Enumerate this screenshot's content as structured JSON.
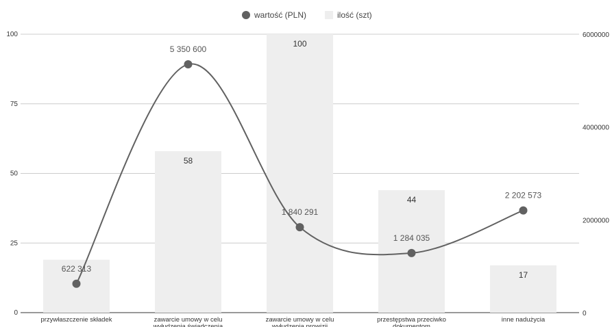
{
  "chart_data": {
    "type": "bar+line",
    "legend": {
      "position": "top",
      "entries": [
        {
          "name": "wartość (PLN)",
          "marker": "circle",
          "color": "#616161"
        },
        {
          "name": "ilość (szt)",
          "marker": "square",
          "color": "#eeeeee"
        }
      ]
    },
    "categories": [
      [
        "przywłaszczenie składek"
      ],
      [
        "zawarcie umowy w celu",
        "wyłudzenia świadczenia"
      ],
      [
        "zawarcie umowy w celu",
        "wyłudzenia prowizji"
      ],
      [
        "przestępstwa przeciwko",
        "dokumentom"
      ],
      [
        "inne nadużycia"
      ]
    ],
    "series": [
      {
        "name": "ilość (szt)",
        "type": "bar",
        "axis": "left",
        "values": [
          19,
          58,
          100,
          44,
          17
        ],
        "labels": [
          "",
          "58",
          "100",
          "44",
          "17"
        ],
        "color": "#eeeeee"
      },
      {
        "name": "wartość (PLN)",
        "type": "line",
        "smooth": true,
        "axis": "right",
        "values": [
          622313,
          5350600,
          1840291,
          1284035,
          2202573
        ],
        "labels": [
          "622 313",
          "5 350 600",
          "1 840 291",
          "1 284 035",
          "2 202 573"
        ],
        "color": "#616161"
      }
    ],
    "left_axis": {
      "min": 0,
      "max": 100,
      "ticks": [
        "0",
        "25",
        "50",
        "75",
        "100"
      ]
    },
    "right_axis": {
      "min": 0,
      "max": 6000000,
      "ticks": [
        "0",
        "2000000",
        "4000000",
        "6000000"
      ]
    },
    "grid": true
  }
}
